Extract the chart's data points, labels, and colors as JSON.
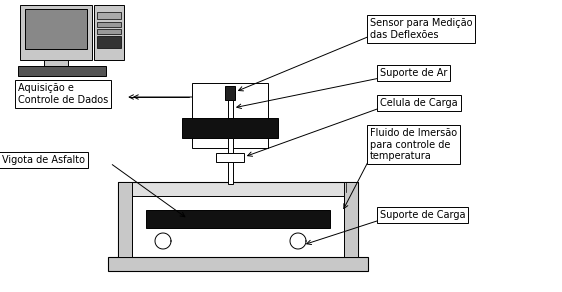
{
  "bg_color": "#ffffff",
  "dark": "#000000",
  "mid_gray": "#888888",
  "light_gray": "#c8c8c8",
  "lighter_gray": "#e0e0e0",
  "black_fill": "#111111",
  "labels": {
    "sensor": "Sensor para Medição\ndas Deflexões",
    "suporte_ar": "Suporte de Ar",
    "celula": "Celula de Carga",
    "fluido": "Fluido de Imersão\npara controle de\ntemperatura",
    "suporte_carga": "Suporte de Carga",
    "vigota": "Vigota de Asfalto",
    "aquisicao": "Aquisição e\nControle de Dados"
  },
  "font_size": 7.0,
  "fig_w": 5.62,
  "fig_h": 2.92,
  "dpi": 100
}
